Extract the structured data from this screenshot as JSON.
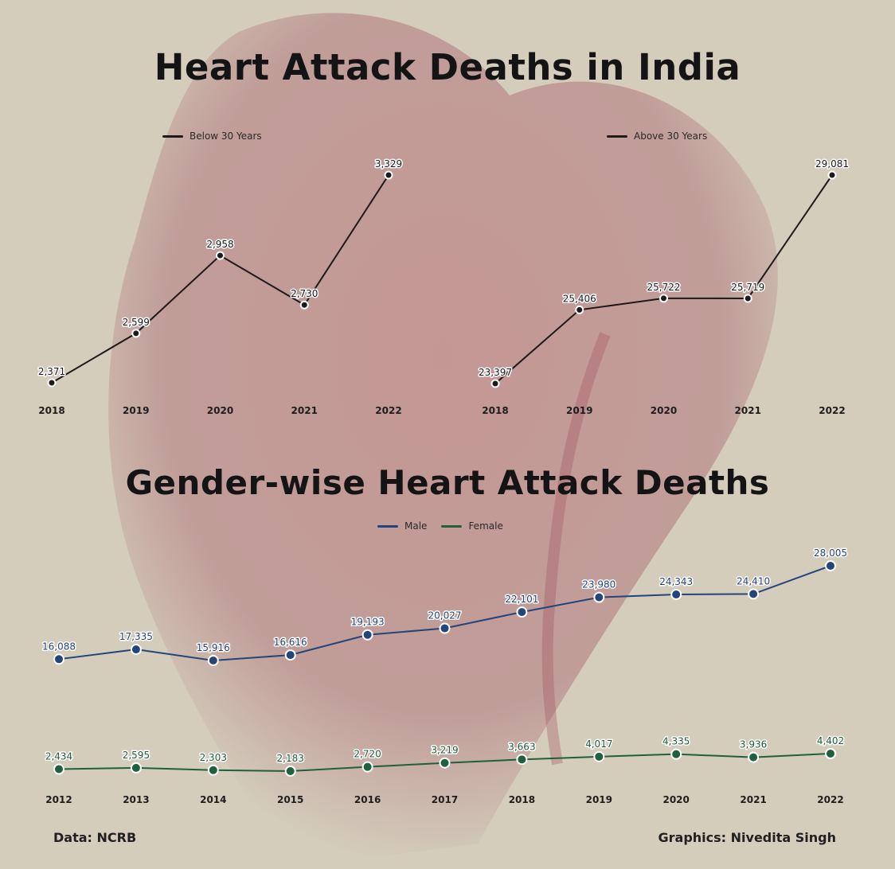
{
  "colors": {
    "background": "#d4cdbc",
    "heart": "#b0656f",
    "line_dark": "#1e1a1a",
    "male": "#24457a",
    "female": "#20603c",
    "text": "#141414"
  },
  "titles": {
    "main": "Heart Attack Deaths in India",
    "gender": "Gender-wise Heart Attack Deaths"
  },
  "footer": {
    "source": "Data: NCRB",
    "credit": "Graphics: Nivedita Singh"
  },
  "chart_data": [
    {
      "type": "line",
      "title": "Heart Attack Deaths in India",
      "x": [
        "2018",
        "2019",
        "2020",
        "2021",
        "2022"
      ],
      "series": [
        {
          "name": "Below 30 Years",
          "values": [
            2371,
            2599,
            2958,
            2730,
            3329
          ],
          "labels": [
            "2,371",
            "2,599",
            "2,958",
            "2,730",
            "3,329"
          ]
        }
      ],
      "ylim": [
        2371,
        3329
      ],
      "grid": false,
      "legend": "top-left"
    },
    {
      "type": "line",
      "x": [
        "2018",
        "2019",
        "2020",
        "2021",
        "2022"
      ],
      "series": [
        {
          "name": "Above 30 Years",
          "values": [
            23397,
            25406,
            25722,
            25719,
            29081
          ],
          "labels": [
            "23,397",
            "25,406",
            "25,722",
            "25,719",
            "29,081"
          ]
        }
      ],
      "ylim": [
        23397,
        29081
      ],
      "grid": false,
      "legend": "top-center"
    },
    {
      "type": "line",
      "title": "Gender-wise Heart Attack Deaths",
      "x": [
        "2012",
        "2013",
        "2014",
        "2015",
        "2016",
        "2017",
        "2018",
        "2019",
        "2020",
        "2021",
        "2022"
      ],
      "series": [
        {
          "name": "Male",
          "values": [
            16088,
            17335,
            15916,
            16616,
            19193,
            20027,
            22101,
            23980,
            24343,
            24410,
            28005
          ],
          "labels": [
            "16,088",
            "17,335",
            "15,916",
            "16,616",
            "19,193",
            "20,027",
            "22,101",
            "23,980",
            "24,343",
            "24,410",
            "28,005"
          ]
        },
        {
          "name": "Female",
          "values": [
            2434,
            2595,
            2303,
            2183,
            2720,
            3219,
            3663,
            4017,
            4335,
            3936,
            4402
          ],
          "labels": [
            "2,434",
            "2,595",
            "2,303",
            "2,183",
            "2,720",
            "3,219",
            "3,663",
            "4,017",
            "4,335",
            "3,936",
            "4,402"
          ]
        }
      ],
      "grid": false,
      "legend": "top-center"
    }
  ]
}
